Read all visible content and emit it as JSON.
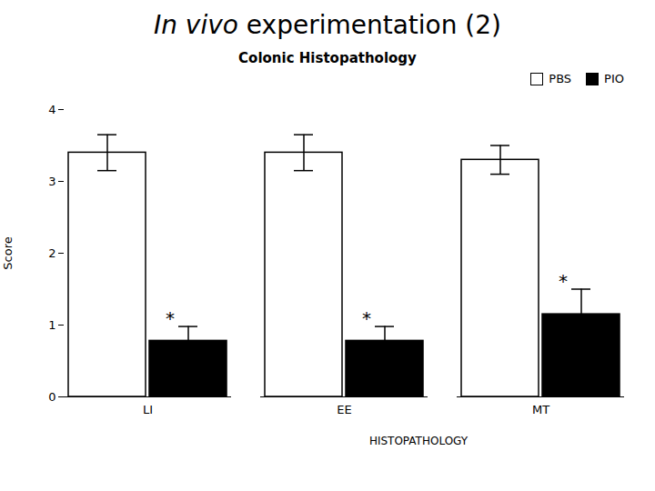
{
  "chart_data": {
    "type": "bar",
    "header": [
      {
        "text": "In vivo",
        "style": "italic"
      },
      {
        "text": " experimentation (2)",
        "style": "normal"
      }
    ],
    "title": "Colonic Histopathology",
    "subtitle": "HISTOPATHOLOGY",
    "ylabel": "Score",
    "categories": [
      "LI",
      "EE",
      "MT"
    ],
    "series": [
      {
        "name": "PBS",
        "color": "#ffffff",
        "values": [
          3.4,
          3.4,
          3.3
        ],
        "errors": [
          0.25,
          0.25,
          0.2
        ]
      },
      {
        "name": "PIO",
        "color": "#000000",
        "values": [
          0.78,
          0.78,
          1.15
        ],
        "errors": [
          0.2,
          0.2,
          0.35
        ]
      }
    ],
    "annotations": [
      {
        "text": "*",
        "category": "LI",
        "series": "PIO"
      },
      {
        "text": "*",
        "category": "EE",
        "series": "PIO"
      },
      {
        "text": "*",
        "category": "MT",
        "series": "PIO"
      }
    ],
    "ylim": [
      0,
      4
    ],
    "yticks": [
      0,
      1,
      2,
      3,
      4
    ],
    "legend": "upper right"
  }
}
